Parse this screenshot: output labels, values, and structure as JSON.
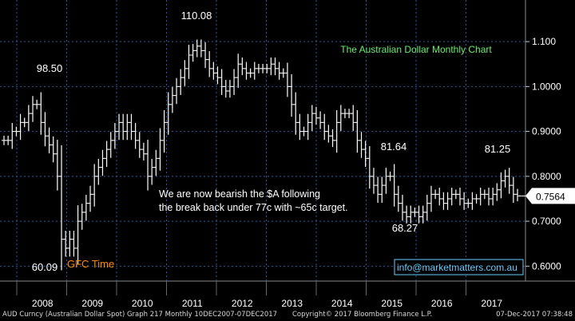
{
  "chart_data": {
    "type": "ohlc",
    "title": "The Australian Dollar Monthly Chart",
    "x_ticks": [
      "2008",
      "2009",
      "2010",
      "2011",
      "2012",
      "2013",
      "2014",
      "2015",
      "2016",
      "2017"
    ],
    "y_ticks": [
      "0.6000",
      "0.7000",
      "0.8000",
      "0.9000",
      "1.0000",
      "1.100"
    ],
    "ylim": [
      0.565,
      1.15
    ],
    "grid": true,
    "last_price": "0.7564",
    "prices": [
      0.88,
      0.88,
      0.9,
      0.9,
      0.92,
      0.92,
      0.94,
      0.96,
      0.96,
      0.92,
      0.89,
      0.87,
      0.85,
      0.8,
      0.66,
      0.64,
      0.66,
      0.64,
      0.7,
      0.72,
      0.74,
      0.76,
      0.8,
      0.82,
      0.84,
      0.86,
      0.88,
      0.9,
      0.92,
      0.9,
      0.92,
      0.9,
      0.88,
      0.86,
      0.85,
      0.8,
      0.82,
      0.84,
      0.88,
      0.92,
      0.96,
      0.98,
      1.0,
      1.02,
      1.04,
      1.07,
      1.08,
      1.09,
      1.08,
      1.06,
      1.04,
      1.03,
      1.02,
      1.0,
      0.99,
      1.0,
      1.02,
      1.05,
      1.04,
      1.03,
      1.03,
      1.04,
      1.04,
      1.04,
      1.04,
      1.05,
      1.04,
      1.03,
      1.03,
      1.0,
      0.96,
      0.92,
      0.9,
      0.9,
      0.92,
      0.94,
      0.93,
      0.92,
      0.9,
      0.89,
      0.88,
      0.92,
      0.94,
      0.94,
      0.94,
      0.92,
      0.88,
      0.86,
      0.84,
      0.8,
      0.78,
      0.76,
      0.78,
      0.8,
      0.8,
      0.76,
      0.74,
      0.72,
      0.71,
      0.72,
      0.72,
      0.71,
      0.72,
      0.74,
      0.76,
      0.76,
      0.75,
      0.74,
      0.75,
      0.76,
      0.76,
      0.75,
      0.74,
      0.74,
      0.75,
      0.75,
      0.76,
      0.76,
      0.75,
      0.76,
      0.77,
      0.79,
      0.8,
      0.78,
      0.76,
      0.7564
    ],
    "annotations": [
      {
        "text": "110.08"
      },
      {
        "text": "98.50"
      },
      {
        "text": "60.09"
      },
      {
        "text": "GFC Time"
      },
      {
        "text": "81.64"
      },
      {
        "text": "68.27"
      },
      {
        "text": "81.25"
      }
    ],
    "comment": "We are now bearish the $A following the break back under 77c with ~65c target."
  },
  "watermark": "info@marketmatters.com.au",
  "footer": {
    "left": "AUD Curncy (Australian Dollar Spot) Graph 217  Monthly 10DEC2007-07DEC2017",
    "middle": "Copyright© 2017 Bloomberg Finance L.P.",
    "right": "07-Dec-2017 07:38:48"
  },
  "colors": {
    "background": "#000000",
    "bars": "#ffffff",
    "grid": "#2a5a9c",
    "axis_text": "#ffffff",
    "title": "#66ee66",
    "gfc_label": "#ff8800",
    "watermark": "#66ccff",
    "last_price_box": "#ffffff"
  }
}
